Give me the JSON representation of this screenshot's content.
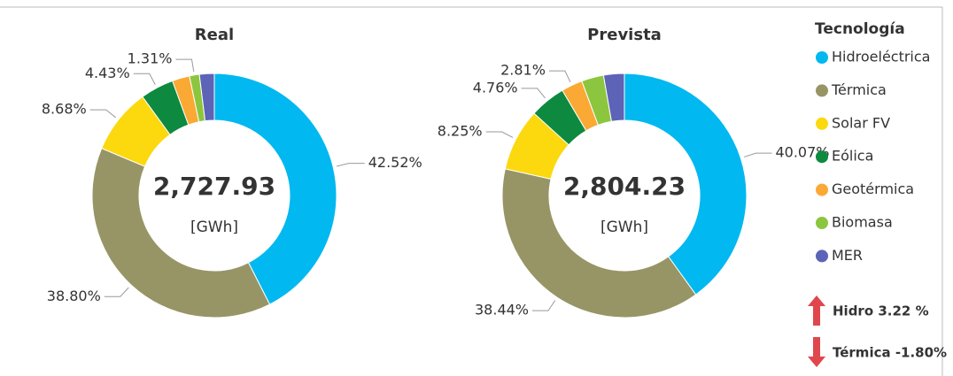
{
  "chart_data": [
    {
      "type": "donut",
      "title": "Real",
      "center_label": "2,727.93",
      "unit": "[GWh]",
      "categories": [
        "Hidroeléctrica",
        "Térmica",
        "Solar FV",
        "Eólica",
        "Geotérmica",
        "Biomasa",
        "MER"
      ],
      "colors": [
        "#01b8f0",
        "#979566",
        "#fcd80e",
        "#0d8a3f",
        "#faa935",
        "#8cc63e",
        "#5d63b6"
      ],
      "values": [
        42.52,
        38.8,
        8.68,
        4.43,
        2.3,
        1.31,
        1.96
      ],
      "value_labels": [
        "42.52%",
        "38.80%",
        "8.68%",
        "4.43%",
        null,
        "1.31%",
        null
      ]
    },
    {
      "type": "donut",
      "title": "Prevista",
      "center_label": "2,804.23",
      "unit": "[GWh]",
      "values": [
        40.07,
        38.44,
        8.25,
        4.76,
        2.81,
        2.93,
        2.74
      ],
      "value_labels": [
        "40.07%",
        "38.44%",
        "8.25%",
        "4.76%",
        "2.81%",
        null,
        null
      ]
    }
  ],
  "legend": {
    "title": "Tecnología"
  },
  "indicators": [
    {
      "text": "Hidro 3.22 %",
      "direction": "up"
    },
    {
      "text": "Térmica -1.80%",
      "direction": "down"
    }
  ]
}
